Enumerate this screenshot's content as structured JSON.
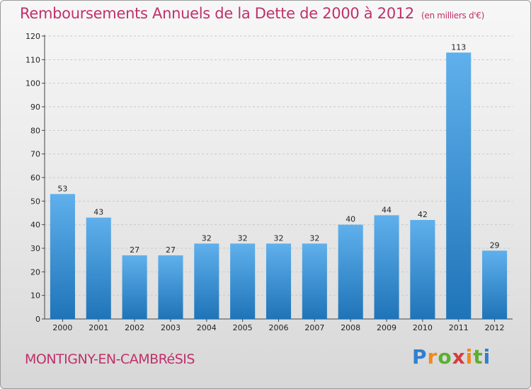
{
  "chart_data": {
    "type": "bar",
    "title": "Remboursements Annuels de la Dette de 2000 à 2012",
    "subtitle": "(en milliers d'€)",
    "categories": [
      "2000",
      "2001",
      "2002",
      "2003",
      "2004",
      "2005",
      "2006",
      "2007",
      "2008",
      "2009",
      "2010",
      "2011",
      "2012"
    ],
    "values": [
      53,
      43,
      27,
      27,
      32,
      32,
      32,
      32,
      40,
      44,
      42,
      113,
      29
    ],
    "yticks": [
      0,
      10,
      20,
      30,
      40,
      50,
      60,
      70,
      80,
      90,
      100,
      110,
      120
    ],
    "ylim": [
      0,
      120
    ],
    "grid": true,
    "xlabel": "",
    "ylabel": "",
    "bar_color": "#3a8fd8"
  },
  "footer": {
    "municipality": "MONTIGNY-EN-CAMBRéSIS"
  },
  "logo": {
    "letters": [
      "P",
      "r",
      "o",
      "x",
      "i",
      "t",
      "i"
    ]
  }
}
